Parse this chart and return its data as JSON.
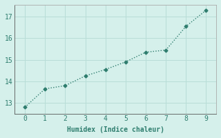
{
  "x": [
    0,
    1,
    2,
    3,
    4,
    5,
    6,
    7,
    8,
    9
  ],
  "y": [
    12.8,
    13.65,
    13.8,
    14.25,
    14.55,
    14.9,
    15.35,
    15.45,
    16.55,
    17.3
  ],
  "line_color": "#2e7d6e",
  "marker": "D",
  "marker_size": 2.5,
  "line_width": 1.0,
  "xlabel": "Humidex (Indice chaleur)",
  "ylabel": "",
  "xlim": [
    -0.5,
    9.5
  ],
  "ylim": [
    12.5,
    17.55
  ],
  "yticks": [
    13,
    14,
    15,
    16,
    17
  ],
  "xticks": [
    0,
    1,
    2,
    3,
    4,
    5,
    6,
    7,
    8,
    9
  ],
  "bg_color": "#d5f0eb",
  "grid_color": "#b8ddd7",
  "font_family": "monospace",
  "xlabel_fontsize": 7,
  "tick_fontsize": 7
}
